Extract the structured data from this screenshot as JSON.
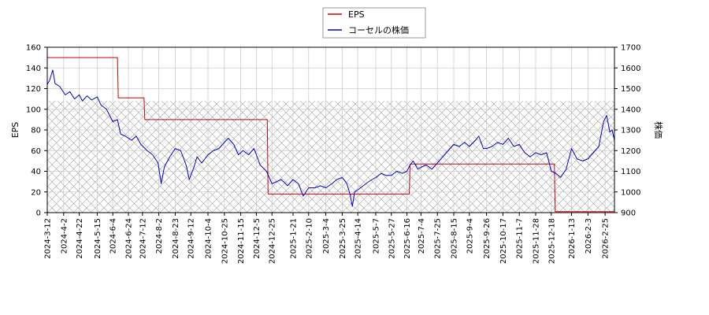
{
  "chart_data": {
    "type": "line",
    "title": "",
    "xlabel": "",
    "ylabel_left": "EPS",
    "ylabel_right": "株価",
    "ylim_left": [
      0,
      160
    ],
    "ylim_right": [
      900,
      1700
    ],
    "y_ticks_left": [
      "0",
      "20",
      "40",
      "60",
      "80",
      "100",
      "120",
      "140",
      "160"
    ],
    "y_ticks_right": [
      "900",
      "1000",
      "1100",
      "1200",
      "1300",
      "1400",
      "1500",
      "1600",
      "1700"
    ],
    "x_range": [
      "2024-03-12",
      "2026-03-09"
    ],
    "x_ticks": [
      "2024-3-12",
      "2024-4-2",
      "2024-4-22",
      "2024-5-15",
      "2024-6-4",
      "2024-6-24",
      "2024-7-12",
      "2024-8-2",
      "2024-8-23",
      "2024-9-12",
      "2024-10-4",
      "2024-10-25",
      "2024-11-15",
      "2024-12-5",
      "2024-12-25",
      "2025-1-21",
      "2025-2-10",
      "2025-3-4",
      "2025-3-25",
      "2025-4-14",
      "2025-5-7",
      "2025-5-27",
      "2025-6-16",
      "2025-7-4",
      "2025-7-25",
      "2025-8-15",
      "2025-9-4",
      "2025-9-26",
      "2025-10-17",
      "2025-11-7",
      "2025-11-28",
      "2025-12-18",
      "2026-1-13",
      "2026-2-3",
      "2026-2-25"
    ],
    "grid": true,
    "hatched_band_left": [
      0,
      108
    ],
    "legend_position": "top-center",
    "series": [
      {
        "name": "EPS",
        "axis": "left",
        "color": "#cc0000",
        "step": true,
        "points": [
          [
            "2024-03-12",
            150
          ],
          [
            "2024-06-10",
            150
          ],
          [
            "2024-06-11",
            111
          ],
          [
            "2024-07-14",
            111
          ],
          [
            "2024-07-15",
            90
          ],
          [
            "2024-12-19",
            90
          ],
          [
            "2024-12-20",
            18
          ],
          [
            "2025-06-19",
            18
          ],
          [
            "2025-06-20",
            47
          ],
          [
            "2025-12-22",
            47
          ],
          [
            "2025-12-23",
            1
          ],
          [
            "2026-03-09",
            1
          ]
        ]
      },
      {
        "name": "コーセルの株価",
        "axis": "right",
        "color": "#0000cc",
        "points": [
          [
            "2024-03-12",
            1520
          ],
          [
            "2024-03-15",
            1540
          ],
          [
            "2024-03-19",
            1590
          ],
          [
            "2024-03-22",
            1525
          ],
          [
            "2024-03-28",
            1510
          ],
          [
            "2024-04-04",
            1470
          ],
          [
            "2024-04-10",
            1485
          ],
          [
            "2024-04-16",
            1450
          ],
          [
            "2024-04-22",
            1470
          ],
          [
            "2024-04-26",
            1440
          ],
          [
            "2024-05-02",
            1465
          ],
          [
            "2024-05-08",
            1445
          ],
          [
            "2024-05-15",
            1460
          ],
          [
            "2024-05-20",
            1420
          ],
          [
            "2024-05-27",
            1400
          ],
          [
            "2024-06-04",
            1340
          ],
          [
            "2024-06-10",
            1350
          ],
          [
            "2024-06-14",
            1280
          ],
          [
            "2024-06-20",
            1270
          ],
          [
            "2024-06-28",
            1250
          ],
          [
            "2024-07-04",
            1270
          ],
          [
            "2024-07-10",
            1230
          ],
          [
            "2024-07-18",
            1200
          ],
          [
            "2024-07-25",
            1180
          ],
          [
            "2024-08-01",
            1140
          ],
          [
            "2024-08-05",
            1040
          ],
          [
            "2024-08-09",
            1120
          ],
          [
            "2024-08-16",
            1170
          ],
          [
            "2024-08-23",
            1210
          ],
          [
            "2024-08-30",
            1200
          ],
          [
            "2024-09-06",
            1130
          ],
          [
            "2024-09-10",
            1060
          ],
          [
            "2024-09-16",
            1120
          ],
          [
            "2024-09-20",
            1170
          ],
          [
            "2024-09-26",
            1140
          ],
          [
            "2024-10-04",
            1180
          ],
          [
            "2024-10-11",
            1200
          ],
          [
            "2024-10-18",
            1210
          ],
          [
            "2024-10-25",
            1240
          ],
          [
            "2024-10-30",
            1260
          ],
          [
            "2024-11-06",
            1230
          ],
          [
            "2024-11-12",
            1180
          ],
          [
            "2024-11-18",
            1200
          ],
          [
            "2024-11-25",
            1180
          ],
          [
            "2024-12-02",
            1210
          ],
          [
            "2024-12-10",
            1130
          ],
          [
            "2024-12-18",
            1100
          ],
          [
            "2024-12-25",
            1040
          ],
          [
            "2025-01-06",
            1060
          ],
          [
            "2025-01-14",
            1030
          ],
          [
            "2025-01-21",
            1060
          ],
          [
            "2025-01-28",
            1040
          ],
          [
            "2025-02-03",
            980
          ],
          [
            "2025-02-10",
            1020
          ],
          [
            "2025-02-18",
            1020
          ],
          [
            "2025-02-25",
            1030
          ],
          [
            "2025-03-04",
            1020
          ],
          [
            "2025-03-12",
            1040
          ],
          [
            "2025-03-18",
            1060
          ],
          [
            "2025-03-25",
            1070
          ],
          [
            "2025-03-31",
            1040
          ],
          [
            "2025-04-04",
            990
          ],
          [
            "2025-04-07",
            930
          ],
          [
            "2025-04-10",
            1000
          ],
          [
            "2025-04-14",
            1010
          ],
          [
            "2025-04-21",
            1030
          ],
          [
            "2025-04-28",
            1050
          ],
          [
            "2025-05-07",
            1070
          ],
          [
            "2025-05-14",
            1090
          ],
          [
            "2025-05-20",
            1080
          ],
          [
            "2025-05-27",
            1080
          ],
          [
            "2025-06-03",
            1100
          ],
          [
            "2025-06-10",
            1090
          ],
          [
            "2025-06-16",
            1100
          ],
          [
            "2025-06-20",
            1130
          ],
          [
            "2025-06-24",
            1150
          ],
          [
            "2025-06-30",
            1110
          ],
          [
            "2025-07-04",
            1120
          ],
          [
            "2025-07-11",
            1130
          ],
          [
            "2025-07-18",
            1110
          ],
          [
            "2025-07-25",
            1140
          ],
          [
            "2025-08-01",
            1170
          ],
          [
            "2025-08-08",
            1200
          ],
          [
            "2025-08-15",
            1230
          ],
          [
            "2025-08-22",
            1220
          ],
          [
            "2025-08-29",
            1240
          ],
          [
            "2025-09-04",
            1220
          ],
          [
            "2025-09-12",
            1250
          ],
          [
            "2025-09-16",
            1270
          ],
          [
            "2025-09-22",
            1210
          ],
          [
            "2025-09-26",
            1210
          ],
          [
            "2025-10-03",
            1220
          ],
          [
            "2025-10-10",
            1240
          ],
          [
            "2025-10-17",
            1230
          ],
          [
            "2025-10-24",
            1260
          ],
          [
            "2025-10-31",
            1220
          ],
          [
            "2025-11-07",
            1230
          ],
          [
            "2025-11-14",
            1190
          ],
          [
            "2025-11-21",
            1170
          ],
          [
            "2025-11-28",
            1190
          ],
          [
            "2025-12-05",
            1180
          ],
          [
            "2025-12-12",
            1190
          ],
          [
            "2025-12-18",
            1100
          ],
          [
            "2025-12-24",
            1090
          ],
          [
            "2025-12-30",
            1070
          ],
          [
            "2026-01-06",
            1110
          ],
          [
            "2026-01-13",
            1210
          ],
          [
            "2026-01-20",
            1160
          ],
          [
            "2026-01-27",
            1150
          ],
          [
            "2026-02-03",
            1160
          ],
          [
            "2026-02-10",
            1190
          ],
          [
            "2026-02-17",
            1220
          ],
          [
            "2026-02-23",
            1340
          ],
          [
            "2026-02-27",
            1370
          ],
          [
            "2026-03-03",
            1290
          ],
          [
            "2026-03-06",
            1300
          ],
          [
            "2026-03-09",
            1250
          ]
        ]
      }
    ]
  }
}
